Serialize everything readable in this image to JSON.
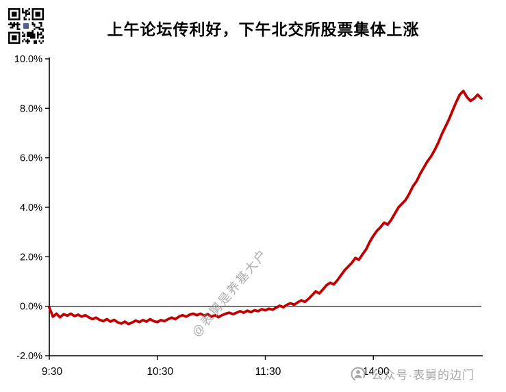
{
  "title": "上午论坛传利好，下午北交所股票集体上涨",
  "watermarks": {
    "center": "@表舅是养基大户",
    "bottom_right": "公众号·表舅的边门"
  },
  "icons": {
    "qr_code": "qr-code",
    "account_logo": "wechat-official-account-icon"
  },
  "colors": {
    "line": "#c00000",
    "axis": "#000000",
    "watermark": "#a6a6a6"
  },
  "chart_data": {
    "type": "line",
    "title": "上午论坛传利好，下午北交所股票集体上涨",
    "xlabel": "",
    "ylabel": "",
    "x_unit": "trading time from 9:30 (lunch break 11:30-13:00 compressed)",
    "xlim": [
      0,
      240
    ],
    "ylim": [
      -2,
      10
    ],
    "grid": false,
    "legend": "none",
    "zero_line": true,
    "line_color": "#c00000",
    "axis_color": "#000000",
    "x_ticks": [
      {
        "pos": 0,
        "label": "9:30"
      },
      {
        "pos": 60,
        "label": "10:30"
      },
      {
        "pos": 120,
        "label": "11:30"
      },
      {
        "pos": 180,
        "label": "14:00"
      }
    ],
    "y_ticks": [
      {
        "value": -2,
        "label": "-2.0%"
      },
      {
        "value": 0,
        "label": "0.0%"
      },
      {
        "value": 2,
        "label": "2.0%"
      },
      {
        "value": 4,
        "label": "4.0%"
      },
      {
        "value": 6,
        "label": "6.0%"
      },
      {
        "value": 8,
        "label": "8.0%"
      },
      {
        "value": 10,
        "label": "10.0%"
      }
    ],
    "series": [
      {
        "name": "",
        "points": [
          [
            0,
            -0.05
          ],
          [
            2,
            -0.42
          ],
          [
            4,
            -0.3
          ],
          [
            6,
            -0.45
          ],
          [
            8,
            -0.32
          ],
          [
            10,
            -0.38
          ],
          [
            12,
            -0.3
          ],
          [
            14,
            -0.4
          ],
          [
            16,
            -0.34
          ],
          [
            18,
            -0.42
          ],
          [
            20,
            -0.36
          ],
          [
            22,
            -0.45
          ],
          [
            24,
            -0.52
          ],
          [
            26,
            -0.46
          ],
          [
            28,
            -0.55
          ],
          [
            30,
            -0.6
          ],
          [
            32,
            -0.52
          ],
          [
            34,
            -0.62
          ],
          [
            36,
            -0.55
          ],
          [
            38,
            -0.65
          ],
          [
            40,
            -0.7
          ],
          [
            42,
            -0.62
          ],
          [
            44,
            -0.72
          ],
          [
            46,
            -0.66
          ],
          [
            48,
            -0.58
          ],
          [
            50,
            -0.64
          ],
          [
            52,
            -0.56
          ],
          [
            54,
            -0.62
          ],
          [
            56,
            -0.52
          ],
          [
            58,
            -0.6
          ],
          [
            60,
            -0.64
          ],
          [
            62,
            -0.56
          ],
          [
            64,
            -0.6
          ],
          [
            66,
            -0.52
          ],
          [
            68,
            -0.46
          ],
          [
            70,
            -0.52
          ],
          [
            72,
            -0.42
          ],
          [
            74,
            -0.36
          ],
          [
            76,
            -0.42
          ],
          [
            78,
            -0.34
          ],
          [
            80,
            -0.3
          ],
          [
            82,
            -0.36
          ],
          [
            84,
            -0.3
          ],
          [
            86,
            -0.38
          ],
          [
            88,
            -0.32
          ],
          [
            90,
            -0.42
          ],
          [
            92,
            -0.36
          ],
          [
            94,
            -0.44
          ],
          [
            96,
            -0.36
          ],
          [
            98,
            -0.3
          ],
          [
            100,
            -0.26
          ],
          [
            102,
            -0.32
          ],
          [
            104,
            -0.26
          ],
          [
            106,
            -0.2
          ],
          [
            108,
            -0.26
          ],
          [
            110,
            -0.18
          ],
          [
            112,
            -0.24
          ],
          [
            114,
            -0.16
          ],
          [
            116,
            -0.2
          ],
          [
            118,
            -0.12
          ],
          [
            120,
            -0.16
          ],
          [
            122,
            -0.1
          ],
          [
            124,
            -0.14
          ],
          [
            126,
            -0.06
          ],
          [
            128,
            0.02
          ],
          [
            130,
            -0.04
          ],
          [
            132,
            0.06
          ],
          [
            134,
            0.12
          ],
          [
            136,
            0.06
          ],
          [
            138,
            0.16
          ],
          [
            140,
            0.24
          ],
          [
            142,
            0.18
          ],
          [
            144,
            0.3
          ],
          [
            146,
            0.45
          ],
          [
            148,
            0.6
          ],
          [
            150,
            0.52
          ],
          [
            152,
            0.68
          ],
          [
            154,
            0.85
          ],
          [
            156,
            0.95
          ],
          [
            158,
            0.88
          ],
          [
            160,
            1.05
          ],
          [
            162,
            1.25
          ],
          [
            164,
            1.45
          ],
          [
            166,
            1.6
          ],
          [
            168,
            1.75
          ],
          [
            170,
            1.95
          ],
          [
            172,
            1.88
          ],
          [
            174,
            2.1
          ],
          [
            176,
            2.3
          ],
          [
            178,
            2.6
          ],
          [
            180,
            2.85
          ],
          [
            182,
            3.05
          ],
          [
            184,
            3.2
          ],
          [
            186,
            3.38
          ],
          [
            188,
            3.3
          ],
          [
            190,
            3.5
          ],
          [
            192,
            3.75
          ],
          [
            194,
            4.0
          ],
          [
            196,
            4.15
          ],
          [
            198,
            4.3
          ],
          [
            200,
            4.55
          ],
          [
            202,
            4.85
          ],
          [
            204,
            5.05
          ],
          [
            206,
            5.35
          ],
          [
            208,
            5.6
          ],
          [
            210,
            5.85
          ],
          [
            212,
            6.05
          ],
          [
            214,
            6.3
          ],
          [
            216,
            6.6
          ],
          [
            218,
            6.95
          ],
          [
            220,
            7.25
          ],
          [
            222,
            7.55
          ],
          [
            224,
            7.9
          ],
          [
            226,
            8.25
          ],
          [
            228,
            8.55
          ],
          [
            230,
            8.7
          ],
          [
            232,
            8.45
          ],
          [
            234,
            8.3
          ],
          [
            236,
            8.4
          ],
          [
            238,
            8.55
          ],
          [
            240,
            8.4
          ]
        ]
      }
    ]
  }
}
